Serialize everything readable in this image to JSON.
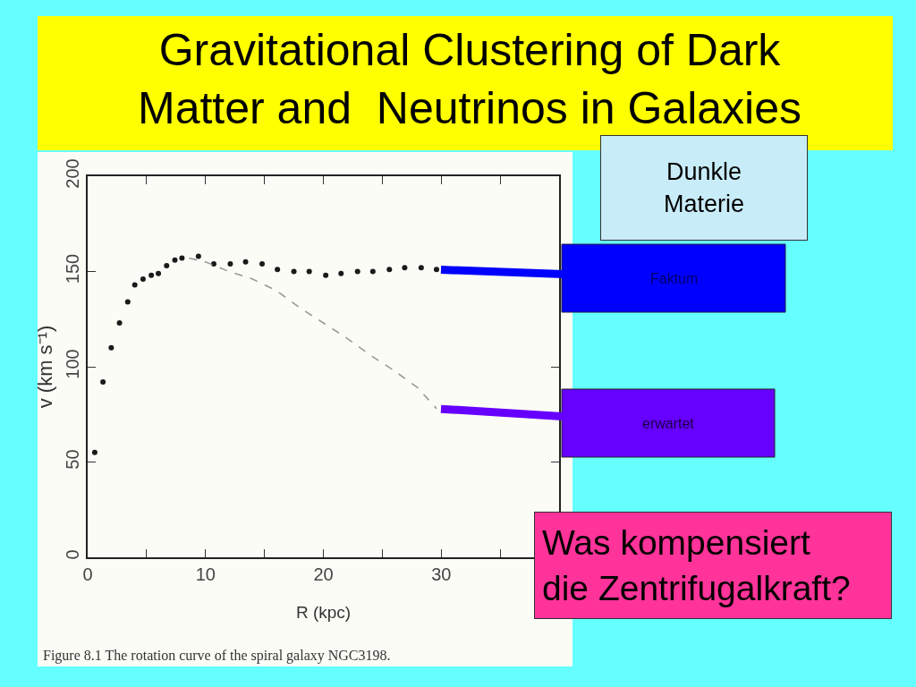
{
  "chart_data": {
    "type": "scatter",
    "title": "Gravitational Clustering of Dark\nMatter and  Neutrinos in Galaxies",
    "xlabel": "R (kpc)",
    "ylabel": "v (km s⁻¹)",
    "xlim": [
      0,
      40
    ],
    "ylim": [
      0,
      200
    ],
    "xticks": [
      0,
      {
        "value": 5,
        "label": null
      },
      10,
      {
        "value": 15,
        "label": null
      },
      20,
      {
        "value": 25,
        "label": null
      },
      30,
      {
        "value": 35,
        "label": null
      }
    ],
    "yticks": [
      0,
      50,
      100,
      150,
      200
    ],
    "marker": "circle",
    "line_style": "dashed",
    "series": [
      {
        "color": "#1a1a1a",
        "x": [
          0.6,
          1.3,
          2.0,
          2.7,
          3.4,
          4.0,
          4.7,
          5.4,
          6.0,
          6.7,
          7.4,
          8.0,
          9.4,
          10.7,
          12.1,
          13.4,
          14.8,
          16.1,
          17.5,
          18.8,
          20.2,
          21.5,
          22.9,
          24.2,
          25.6,
          26.9,
          28.3,
          29.6
        ],
        "values": [
          55,
          92,
          110,
          123,
          134,
          143,
          146,
          148,
          149,
          153,
          156,
          157,
          158,
          154,
          154,
          155,
          154,
          151,
          150,
          150,
          148,
          149,
          150,
          150,
          151,
          152,
          152,
          151
        ]
      },
      {
        "type": "line",
        "marker": "none",
        "color": "#999999",
        "x": [
          8.6,
          10,
          12,
          14,
          16,
          18,
          20,
          22,
          24,
          26,
          28,
          29.6
        ],
        "values": [
          157,
          155,
          150,
          146,
          140,
          131,
          123,
          115,
          106,
          98,
          89,
          78
        ]
      }
    ],
    "annotations": [
      "Dunkle\nMaterie",
      {
        "text": "Faktum",
        "x": 29.6,
        "y": 151
      },
      {
        "text": "erwartet",
        "x": 29.6,
        "y": 78
      },
      "Was kompensiert\ndie Zentrifugalkraft?",
      "Figure 8.1 The rotation curve of the spiral galaxy NGC3198."
    ]
  }
}
